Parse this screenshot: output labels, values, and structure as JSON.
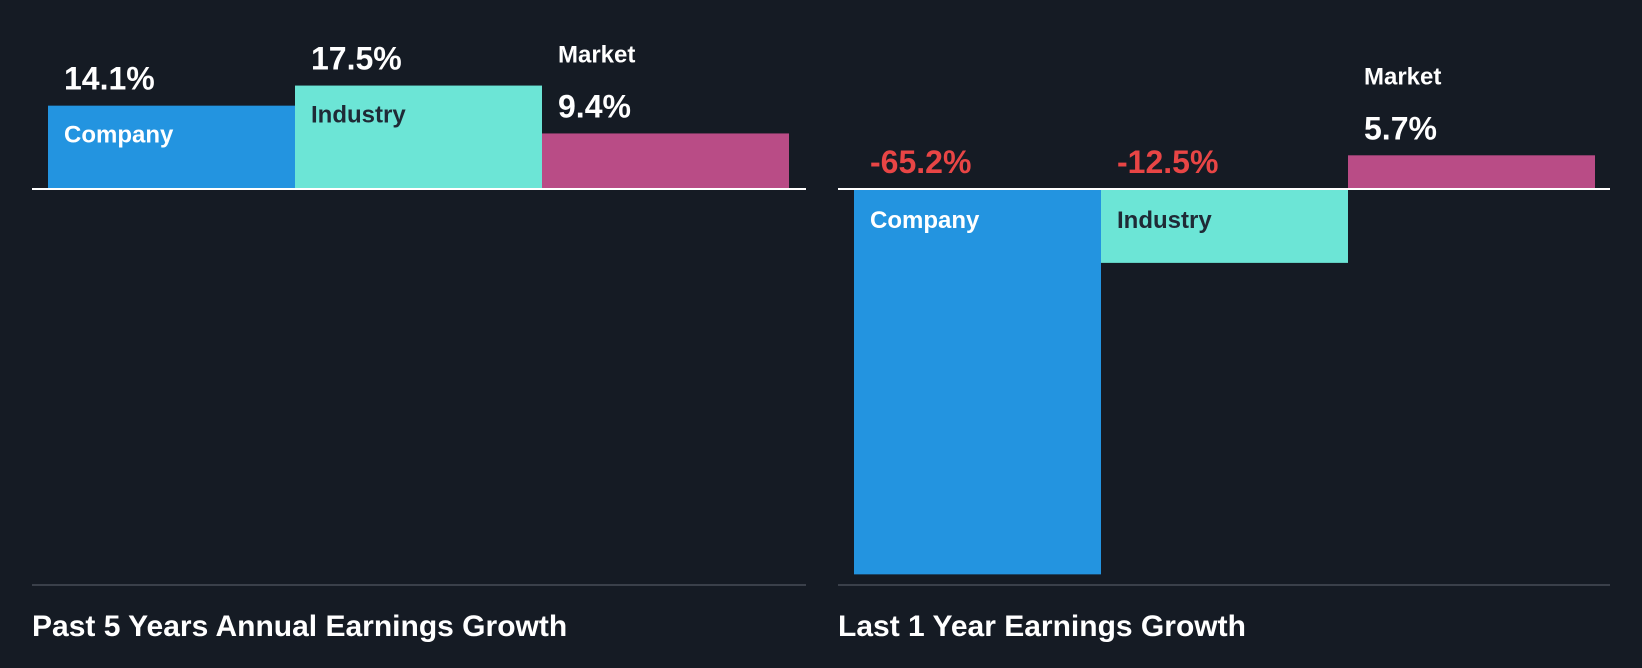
{
  "colors": {
    "background": "#151b24",
    "company": "#2394e0",
    "industry": "#6ce5d6",
    "market": "#b94c86",
    "positive_value_text": "#ffffff",
    "negative_value_text": "#e84545",
    "axis_line": "#ffffff",
    "baseline": "#3a404a"
  },
  "chart_data": [
    {
      "type": "bar",
      "title": "Past 5 Years Annual Earnings Growth",
      "categories": [
        "Company",
        "Industry",
        "Market"
      ],
      "values": [
        14.1,
        17.5,
        9.4
      ],
      "value_labels": [
        "14.1%",
        "17.5%",
        "9.4%"
      ],
      "unit": "%",
      "ylim": [
        -67,
        17.5
      ],
      "grid": false,
      "legend": "none"
    },
    {
      "type": "bar",
      "title": "Last 1 Year Earnings Growth",
      "categories": [
        "Company",
        "Industry",
        "Market"
      ],
      "values": [
        -65.2,
        -12.5,
        5.7
      ],
      "value_labels": [
        "-65.2%",
        "-12.5%",
        "5.7%"
      ],
      "unit": "%",
      "ylim": [
        -67,
        17.5
      ],
      "grid": false,
      "legend": "none"
    }
  ]
}
